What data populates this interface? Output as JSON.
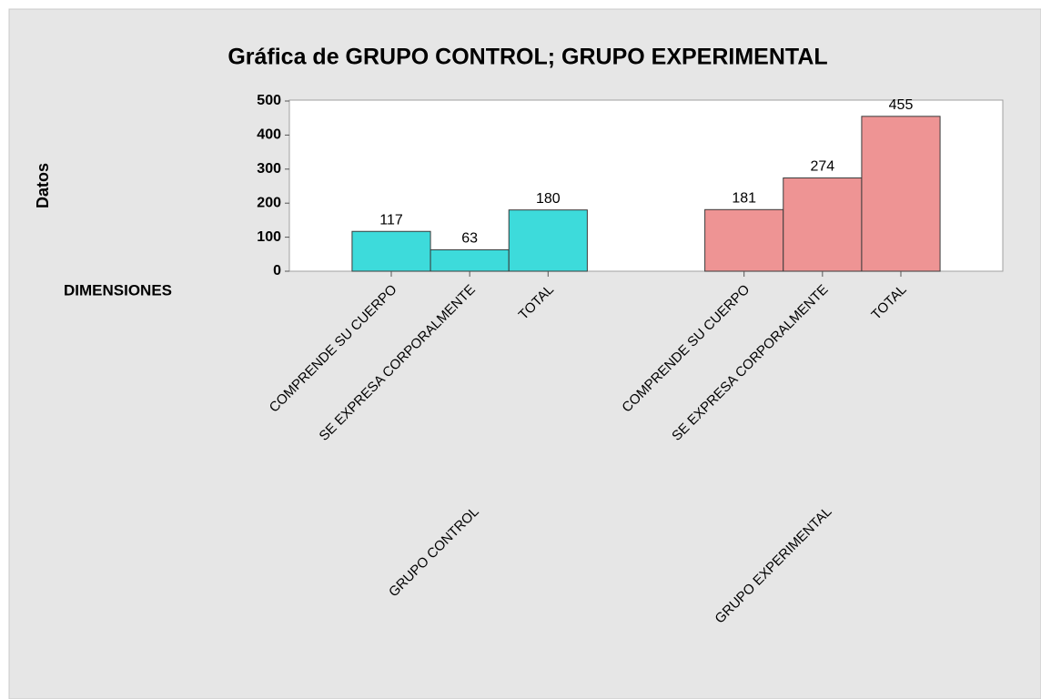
{
  "chart_data": {
    "type": "bar",
    "title": "Gráfica de GRUPO CONTROL; GRUPO EXPERIMENTAL",
    "y_label": "Datos",
    "x_label": "DIMENSIONES",
    "categories": [
      "COMPRENDE SU CUERPO",
      "SE EXPRESA CORPORALMENTE",
      "TOTAL"
    ],
    "series": [
      {
        "name": "GRUPO CONTROL",
        "color": "#3ddbdb",
        "values": [
          117,
          63,
          180
        ]
      },
      {
        "name": "GRUPO EXPERIMENTAL",
        "color": "#ee9494",
        "values": [
          181,
          274,
          455
        ]
      }
    ],
    "ylim": [
      0,
      500
    ],
    "yticks": [
      0,
      100,
      200,
      300,
      400,
      500
    ]
  }
}
